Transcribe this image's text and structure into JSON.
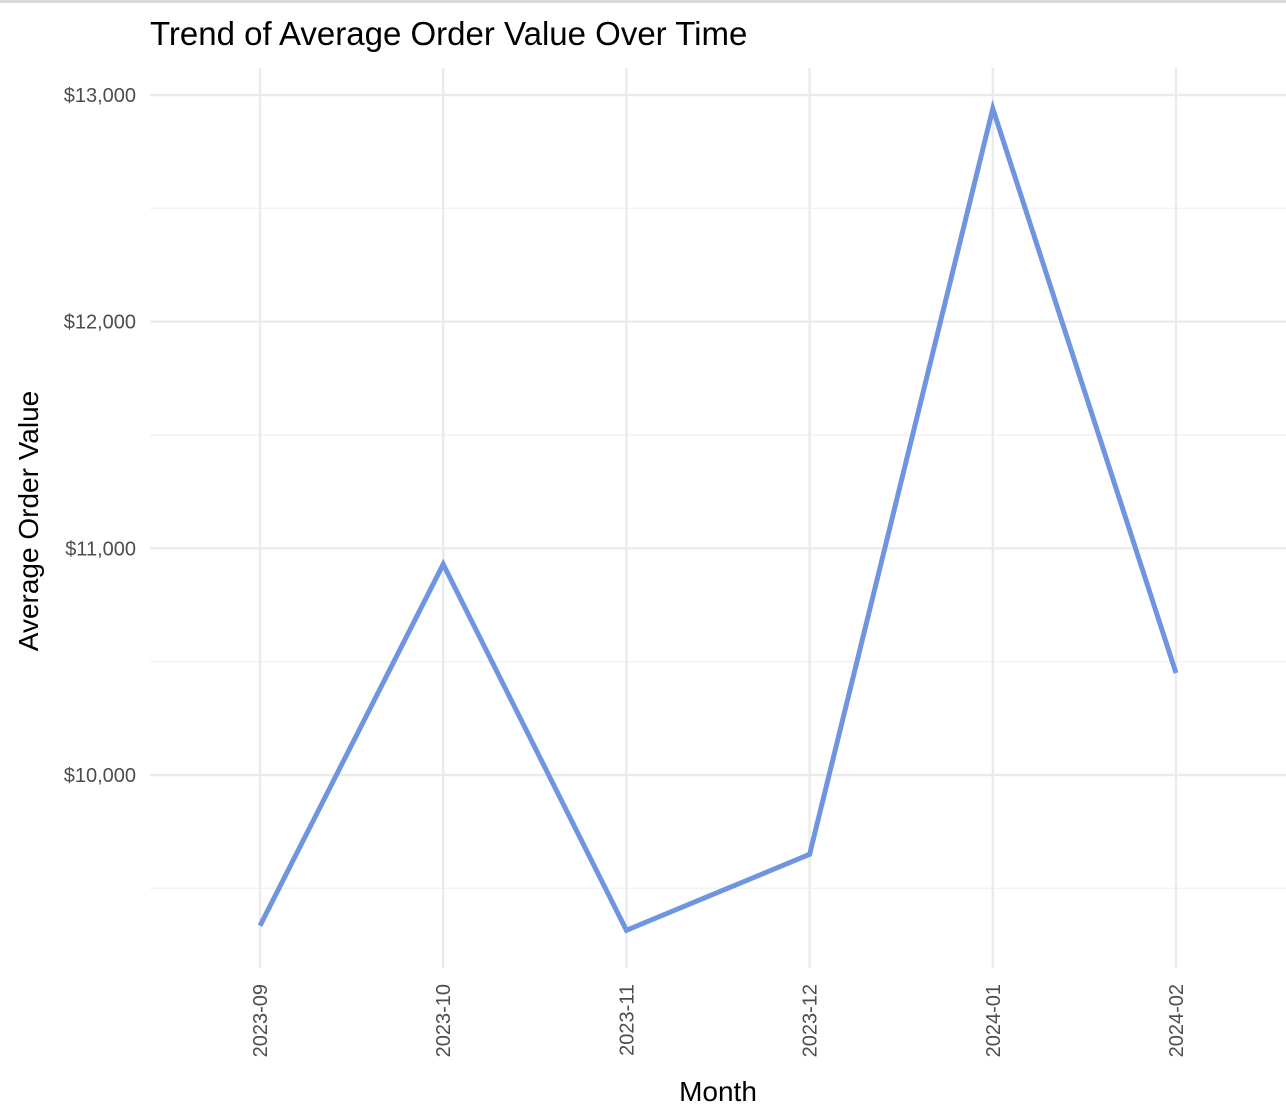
{
  "chart_data": {
    "type": "line",
    "title": "Trend of Average Order Value Over Time",
    "xlabel": "Month",
    "ylabel": "Average Order Value",
    "categories": [
      "2023-09",
      "2023-10",
      "2023-11",
      "2023-12",
      "2024-01",
      "2024-02"
    ],
    "series": [
      {
        "values": [
          9335,
          10930,
          9315,
          9650,
          12940,
          10450
        ],
        "color": "#7095e0"
      }
    ],
    "y_ticks": [
      10000,
      11000,
      12000,
      13000
    ],
    "y_tick_labels": [
      "$10,000",
      "$11,000",
      "$12,000",
      "$13,000"
    ],
    "ylim": [
      9130,
      13120
    ],
    "grid": true,
    "x_tick_rotation": "vertical"
  }
}
